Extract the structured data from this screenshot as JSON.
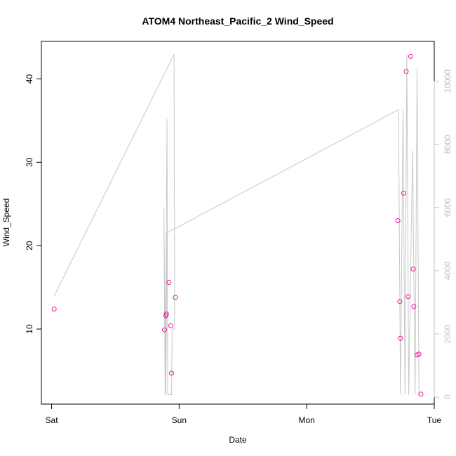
{
  "chart_data": {
    "type": "scatter",
    "title": "ATOM4 Northeast_Pacific_2 Wind_Speed",
    "xlabel": "Date",
    "ylabel": "Wind_Speed",
    "x_axis": {
      "ticks": [
        0,
        1,
        2,
        3
      ],
      "tick_labels": [
        "Sat",
        "Sun",
        "Mon",
        "Tue"
      ],
      "xlim": [
        -0.08,
        3.0
      ]
    },
    "y_axis": {
      "ticks": [
        10,
        20,
        30,
        40
      ],
      "tick_labels": [
        "10",
        "20",
        "30",
        "40"
      ],
      "ylim": [
        1,
        44.5
      ]
    },
    "y2_axis": {
      "ticks": [
        0,
        2000,
        4000,
        6000,
        8000,
        10000
      ],
      "tick_labels": [
        "0",
        "2000",
        "4000",
        "6000",
        "8000",
        "10000"
      ],
      "ylim": [
        -220,
        11260
      ],
      "color": "#c0c0c0"
    },
    "points": {
      "color": "#e8179b",
      "x": [
        0.02,
        0.885,
        0.895,
        0.9,
        0.92,
        0.935,
        0.94,
        0.97,
        2.715,
        2.73,
        2.735,
        2.76,
        2.78,
        2.795,
        2.815,
        2.835,
        2.84,
        2.865,
        2.88,
        2.895
      ],
      "y": [
        12.4,
        9.9,
        11.6,
        11.8,
        15.6,
        10.4,
        4.7,
        13.8,
        23.0,
        13.3,
        8.9,
        26.3,
        40.9,
        13.9,
        42.7,
        17.2,
        12.7,
        6.9,
        7.0,
        2.2
      ]
    },
    "line": {
      "color": "#c8c8c8",
      "x": [
        0.02,
        0.96,
        0.965,
        0.945,
        0.94,
        0.91,
        0.905,
        0.89,
        0.88,
        0.895,
        0.905,
        2.72,
        2.735,
        2.755,
        2.77,
        2.785,
        2.8,
        2.83,
        2.85,
        2.865,
        2.88,
        2.885
      ],
      "y": [
        3200,
        10850,
        2150,
        2150,
        80,
        80,
        8800,
        80,
        6000,
        80,
        5200,
        9100,
        80,
        9100,
        80,
        10850,
        80,
        7800,
        80,
        10400,
        80,
        80
      ]
    }
  }
}
